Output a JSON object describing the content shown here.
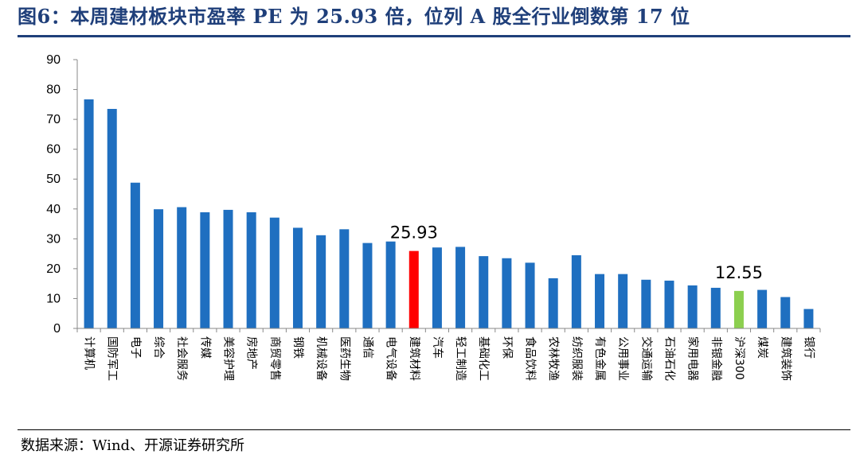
{
  "title": "图6：本周建材板块市盈率 PE 为 25.93 倍，位列 A 股全行业倒数第 17 位",
  "source": "数据来源：Wind、开源证券研究所",
  "colors": {
    "title": "#1f3f7a",
    "bar_default": "#1f6fc0",
    "bar_highlight": "#ff0000",
    "bar_benchmark": "#8ccf4f"
  },
  "chart_data": {
    "type": "bar",
    "title": "",
    "xlabel": "",
    "ylabel": "",
    "ylim": [
      0,
      90
    ],
    "yticks": [
      0,
      10,
      20,
      30,
      40,
      50,
      60,
      70,
      80,
      90
    ],
    "grid": false,
    "legend": "none",
    "categories": [
      "计算机",
      "国防军工",
      "电子",
      "综合",
      "社会服务",
      "传媒",
      "美容护理",
      "房地产",
      "商贸零售",
      "钢铁",
      "机械设备",
      "医药生物",
      "通信",
      "电气设备",
      "建筑材料",
      "汽车",
      "轻工制造",
      "基础化工",
      "环保",
      "食品饮料",
      "农林牧渔",
      "纺织服装",
      "有色金属",
      "公用事业",
      "交通运输",
      "石油石化",
      "家用电器",
      "非银金融",
      "沪深300",
      "煤炭",
      "建筑装饰",
      "银行"
    ],
    "values": [
      76.7,
      73.5,
      48.8,
      39.9,
      40.6,
      38.9,
      39.7,
      38.9,
      37.1,
      33.7,
      31.2,
      33.2,
      28.6,
      29.1,
      25.93,
      27.1,
      27.3,
      24.2,
      23.5,
      22.0,
      16.8,
      24.5,
      18.2,
      18.2,
      16.3,
      16.0,
      14.4,
      13.6,
      12.55,
      12.9,
      10.5,
      6.5
    ],
    "highlight": {
      "category": "建筑材料",
      "label": "25.93"
    },
    "benchmark": {
      "category": "沪深300",
      "label": "12.55"
    }
  }
}
